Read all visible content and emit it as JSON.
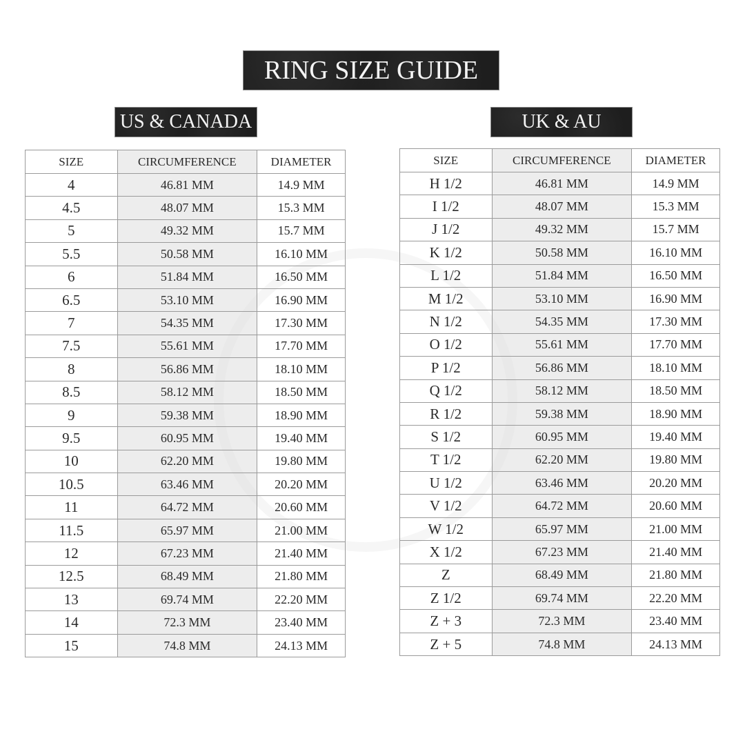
{
  "title": "RING SIZE GUIDE",
  "columns": {
    "size": "SIZE",
    "circumference": "CIRCUMFERENCE",
    "diameter": "DIAMETER"
  },
  "us": {
    "title": "US & CANADA",
    "rows": [
      [
        "4",
        "46.81 MM",
        "14.9 MM"
      ],
      [
        "4.5",
        "48.07 MM",
        "15.3 MM"
      ],
      [
        "5",
        "49.32 MM",
        "15.7 MM"
      ],
      [
        "5.5",
        "50.58 MM",
        "16.10 MM"
      ],
      [
        "6",
        "51.84 MM",
        "16.50 MM"
      ],
      [
        "6.5",
        "53.10 MM",
        "16.90 MM"
      ],
      [
        "7",
        "54.35 MM",
        "17.30 MM"
      ],
      [
        "7.5",
        "55.61 MM",
        "17.70 MM"
      ],
      [
        "8",
        "56.86 MM",
        "18.10 MM"
      ],
      [
        "8.5",
        "58.12 MM",
        "18.50 MM"
      ],
      [
        "9",
        "59.38 MM",
        "18.90 MM"
      ],
      [
        "9.5",
        "60.95 MM",
        "19.40 MM"
      ],
      [
        "10",
        "62.20 MM",
        "19.80 MM"
      ],
      [
        "10.5",
        "63.46 MM",
        "20.20 MM"
      ],
      [
        "11",
        "64.72 MM",
        "20.60 MM"
      ],
      [
        "11.5",
        "65.97 MM",
        "21.00 MM"
      ],
      [
        "12",
        "67.23 MM",
        "21.40 MM"
      ],
      [
        "12.5",
        "68.49 MM",
        "21.80 MM"
      ],
      [
        "13",
        "69.74 MM",
        "22.20 MM"
      ],
      [
        "14",
        "72.3 MM",
        "23.40 MM"
      ],
      [
        "15",
        "74.8 MM",
        "24.13 MM"
      ]
    ]
  },
  "uk": {
    "title": "UK & AU",
    "rows": [
      [
        "H 1/2",
        "46.81 MM",
        "14.9 MM"
      ],
      [
        "I 1/2",
        "48.07 MM",
        "15.3 MM"
      ],
      [
        "J 1/2",
        "49.32 MM",
        "15.7 MM"
      ],
      [
        "K 1/2",
        "50.58 MM",
        "16.10 MM"
      ],
      [
        "L 1/2",
        "51.84 MM",
        "16.50 MM"
      ],
      [
        "M 1/2",
        "53.10 MM",
        "16.90 MM"
      ],
      [
        "N 1/2",
        "54.35 MM",
        "17.30 MM"
      ],
      [
        "O 1/2",
        "55.61 MM",
        "17.70 MM"
      ],
      [
        "P 1/2",
        "56.86 MM",
        "18.10 MM"
      ],
      [
        "Q 1/2",
        "58.12 MM",
        "18.50 MM"
      ],
      [
        "R 1/2",
        "59.38 MM",
        "18.90 MM"
      ],
      [
        "S 1/2",
        "60.95 MM",
        "19.40 MM"
      ],
      [
        "T 1/2",
        "62.20 MM",
        "19.80 MM"
      ],
      [
        "U 1/2",
        "63.46 MM",
        "20.20 MM"
      ],
      [
        "V 1/2",
        "64.72 MM",
        "20.60 MM"
      ],
      [
        "W 1/2",
        "65.97 MM",
        "21.00 MM"
      ],
      [
        "X 1/2",
        "67.23 MM",
        "21.40 MM"
      ],
      [
        "Z",
        "68.49 MM",
        "21.80 MM"
      ],
      [
        "Z 1/2",
        "69.74 MM",
        "22.20 MM"
      ],
      [
        "Z + 3",
        "72.3 MM",
        "23.40 MM"
      ],
      [
        "Z + 5",
        "74.8 MM",
        "24.13 MM"
      ]
    ]
  }
}
